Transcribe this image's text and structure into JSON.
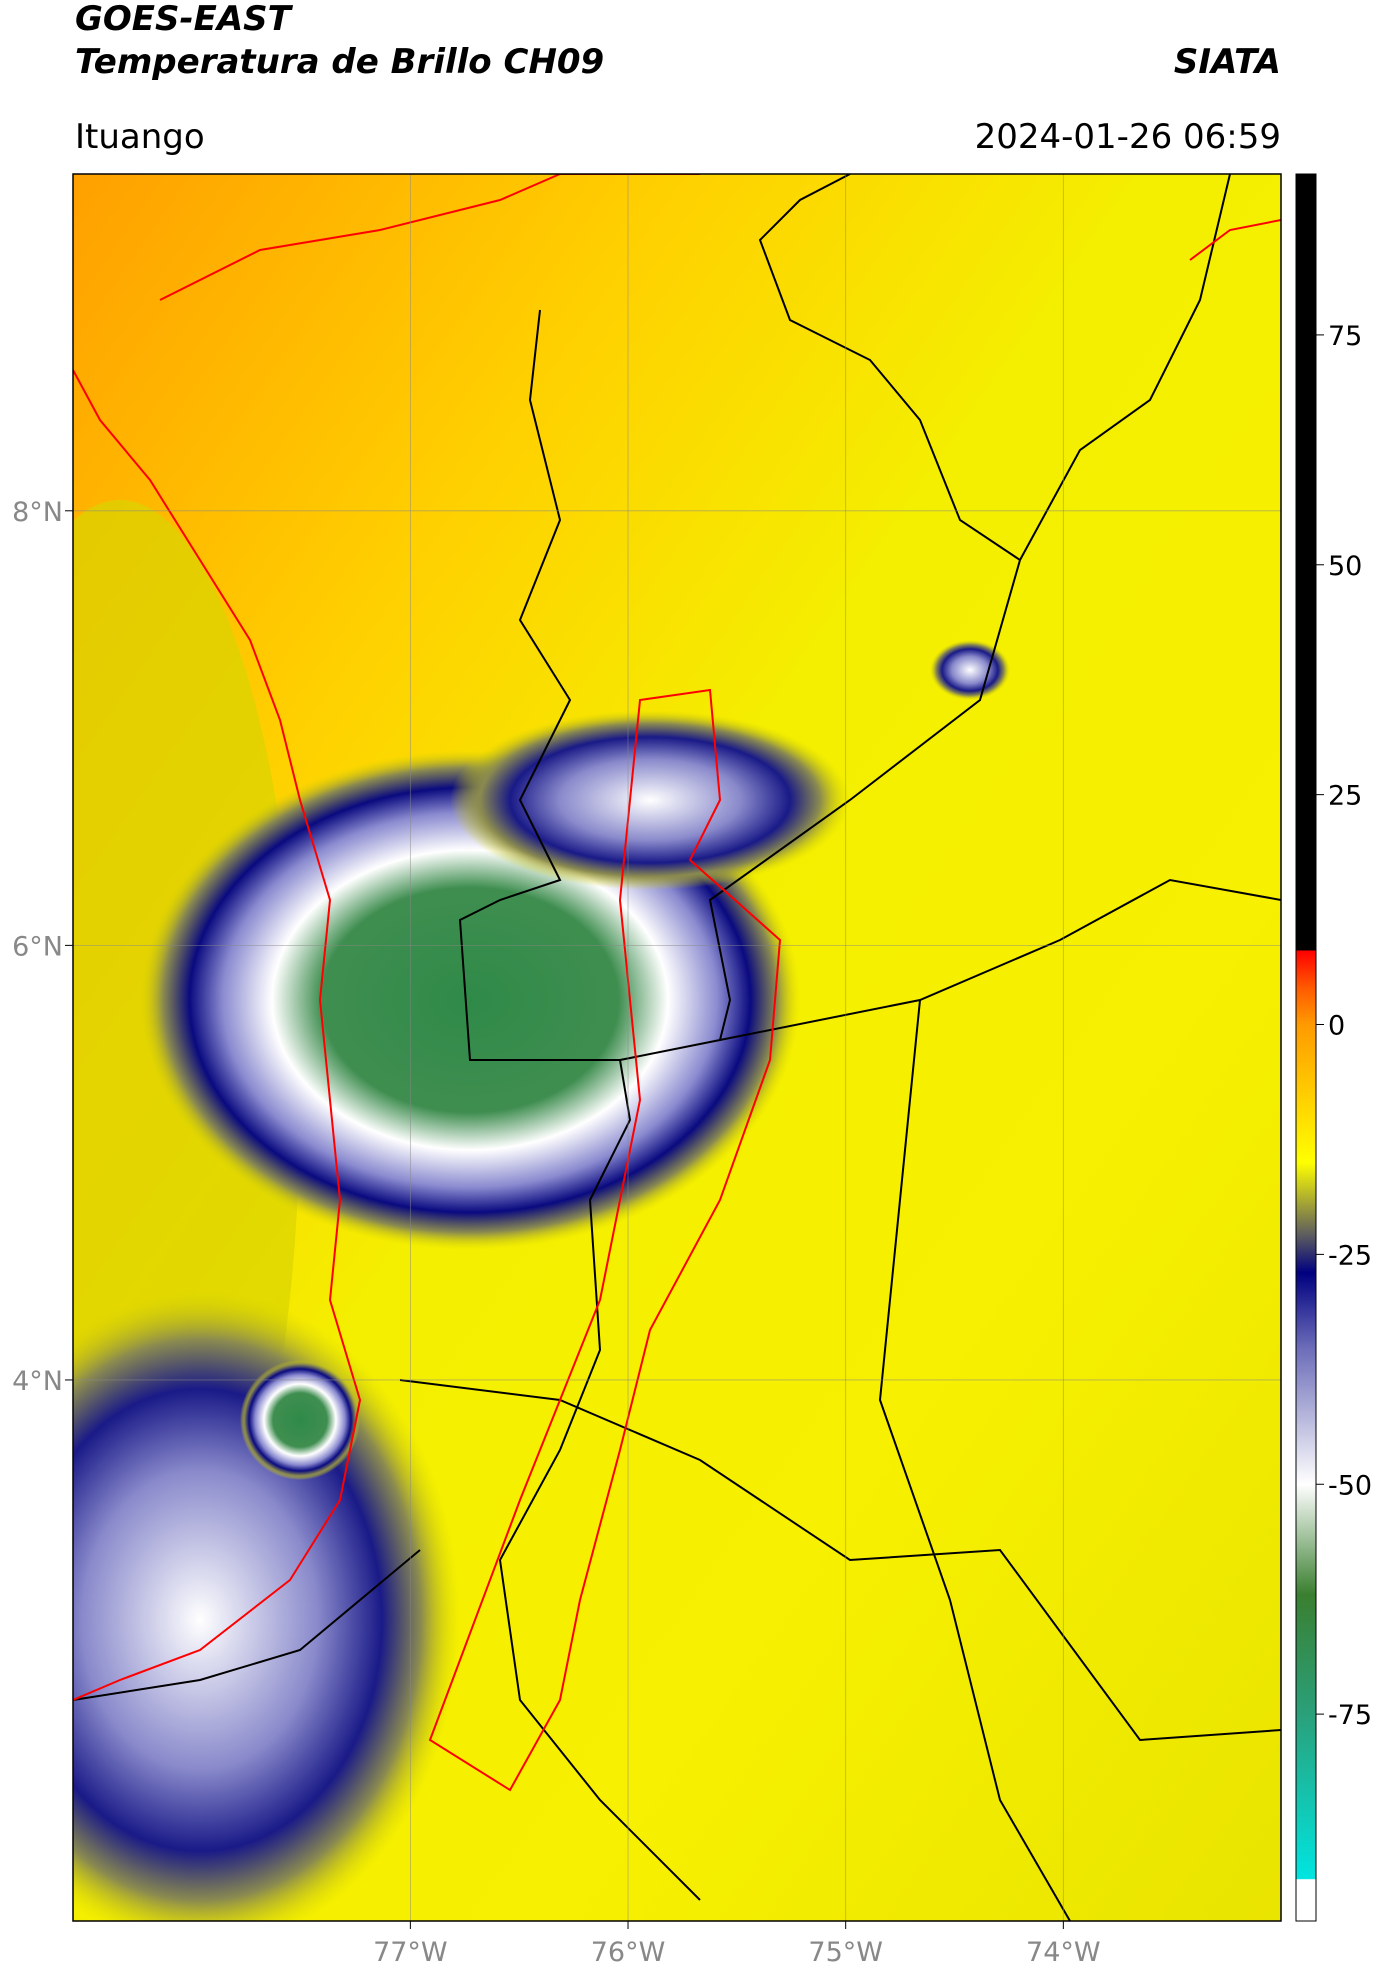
{
  "chart_data": {
    "type": "map",
    "title": "GOES-EAST",
    "subtitle": "Temperatura de Brillo CH09",
    "source": "SIATA",
    "region": "Ituango",
    "datetime": "2024-01-26 06:59",
    "xlim": [
      -78.55,
      -73.0
    ],
    "ylim": [
      1.51,
      9.55
    ],
    "xticks": [
      {
        "value": -77,
        "label": "77°W"
      },
      {
        "value": -76,
        "label": "76°W"
      },
      {
        "value": -75,
        "label": "75°W"
      },
      {
        "value": -74,
        "label": "74°W"
      }
    ],
    "yticks": [
      {
        "value": 8,
        "label": "8°N"
      },
      {
        "value": 6,
        "label": "6°N"
      },
      {
        "value": 4,
        "label": "4°N"
      }
    ],
    "grid": true,
    "colorbar": {
      "clim": [
        -97.5,
        92.5
      ],
      "ticks": [
        75,
        50,
        25,
        0,
        -25,
        -50,
        -75
      ],
      "colormap": [
        {
          "value": -97.5,
          "color": "#ffffff"
        },
        {
          "value": -93,
          "color": "#ffffff"
        },
        {
          "value": -92.9,
          "color": "#00e5e0"
        },
        {
          "value": -75,
          "color": "#2aa07a"
        },
        {
          "value": -62,
          "color": "#3a7f30"
        },
        {
          "value": -50,
          "color": "#ffffff"
        },
        {
          "value": -35,
          "color": "#6a6ab8"
        },
        {
          "value": -27,
          "color": "#000080"
        },
        {
          "value": -23,
          "color": "#5a5a60"
        },
        {
          "value": -15,
          "color": "#ffff00"
        },
        {
          "value": 0,
          "color": "#ff9a00"
        },
        {
          "value": 4,
          "color": "#ff5a00"
        },
        {
          "value": 8,
          "color": "#ff0000"
        },
        {
          "value": 8.1,
          "color": "#000000"
        },
        {
          "value": 92.5,
          "color": "#000000"
        }
      ]
    }
  }
}
